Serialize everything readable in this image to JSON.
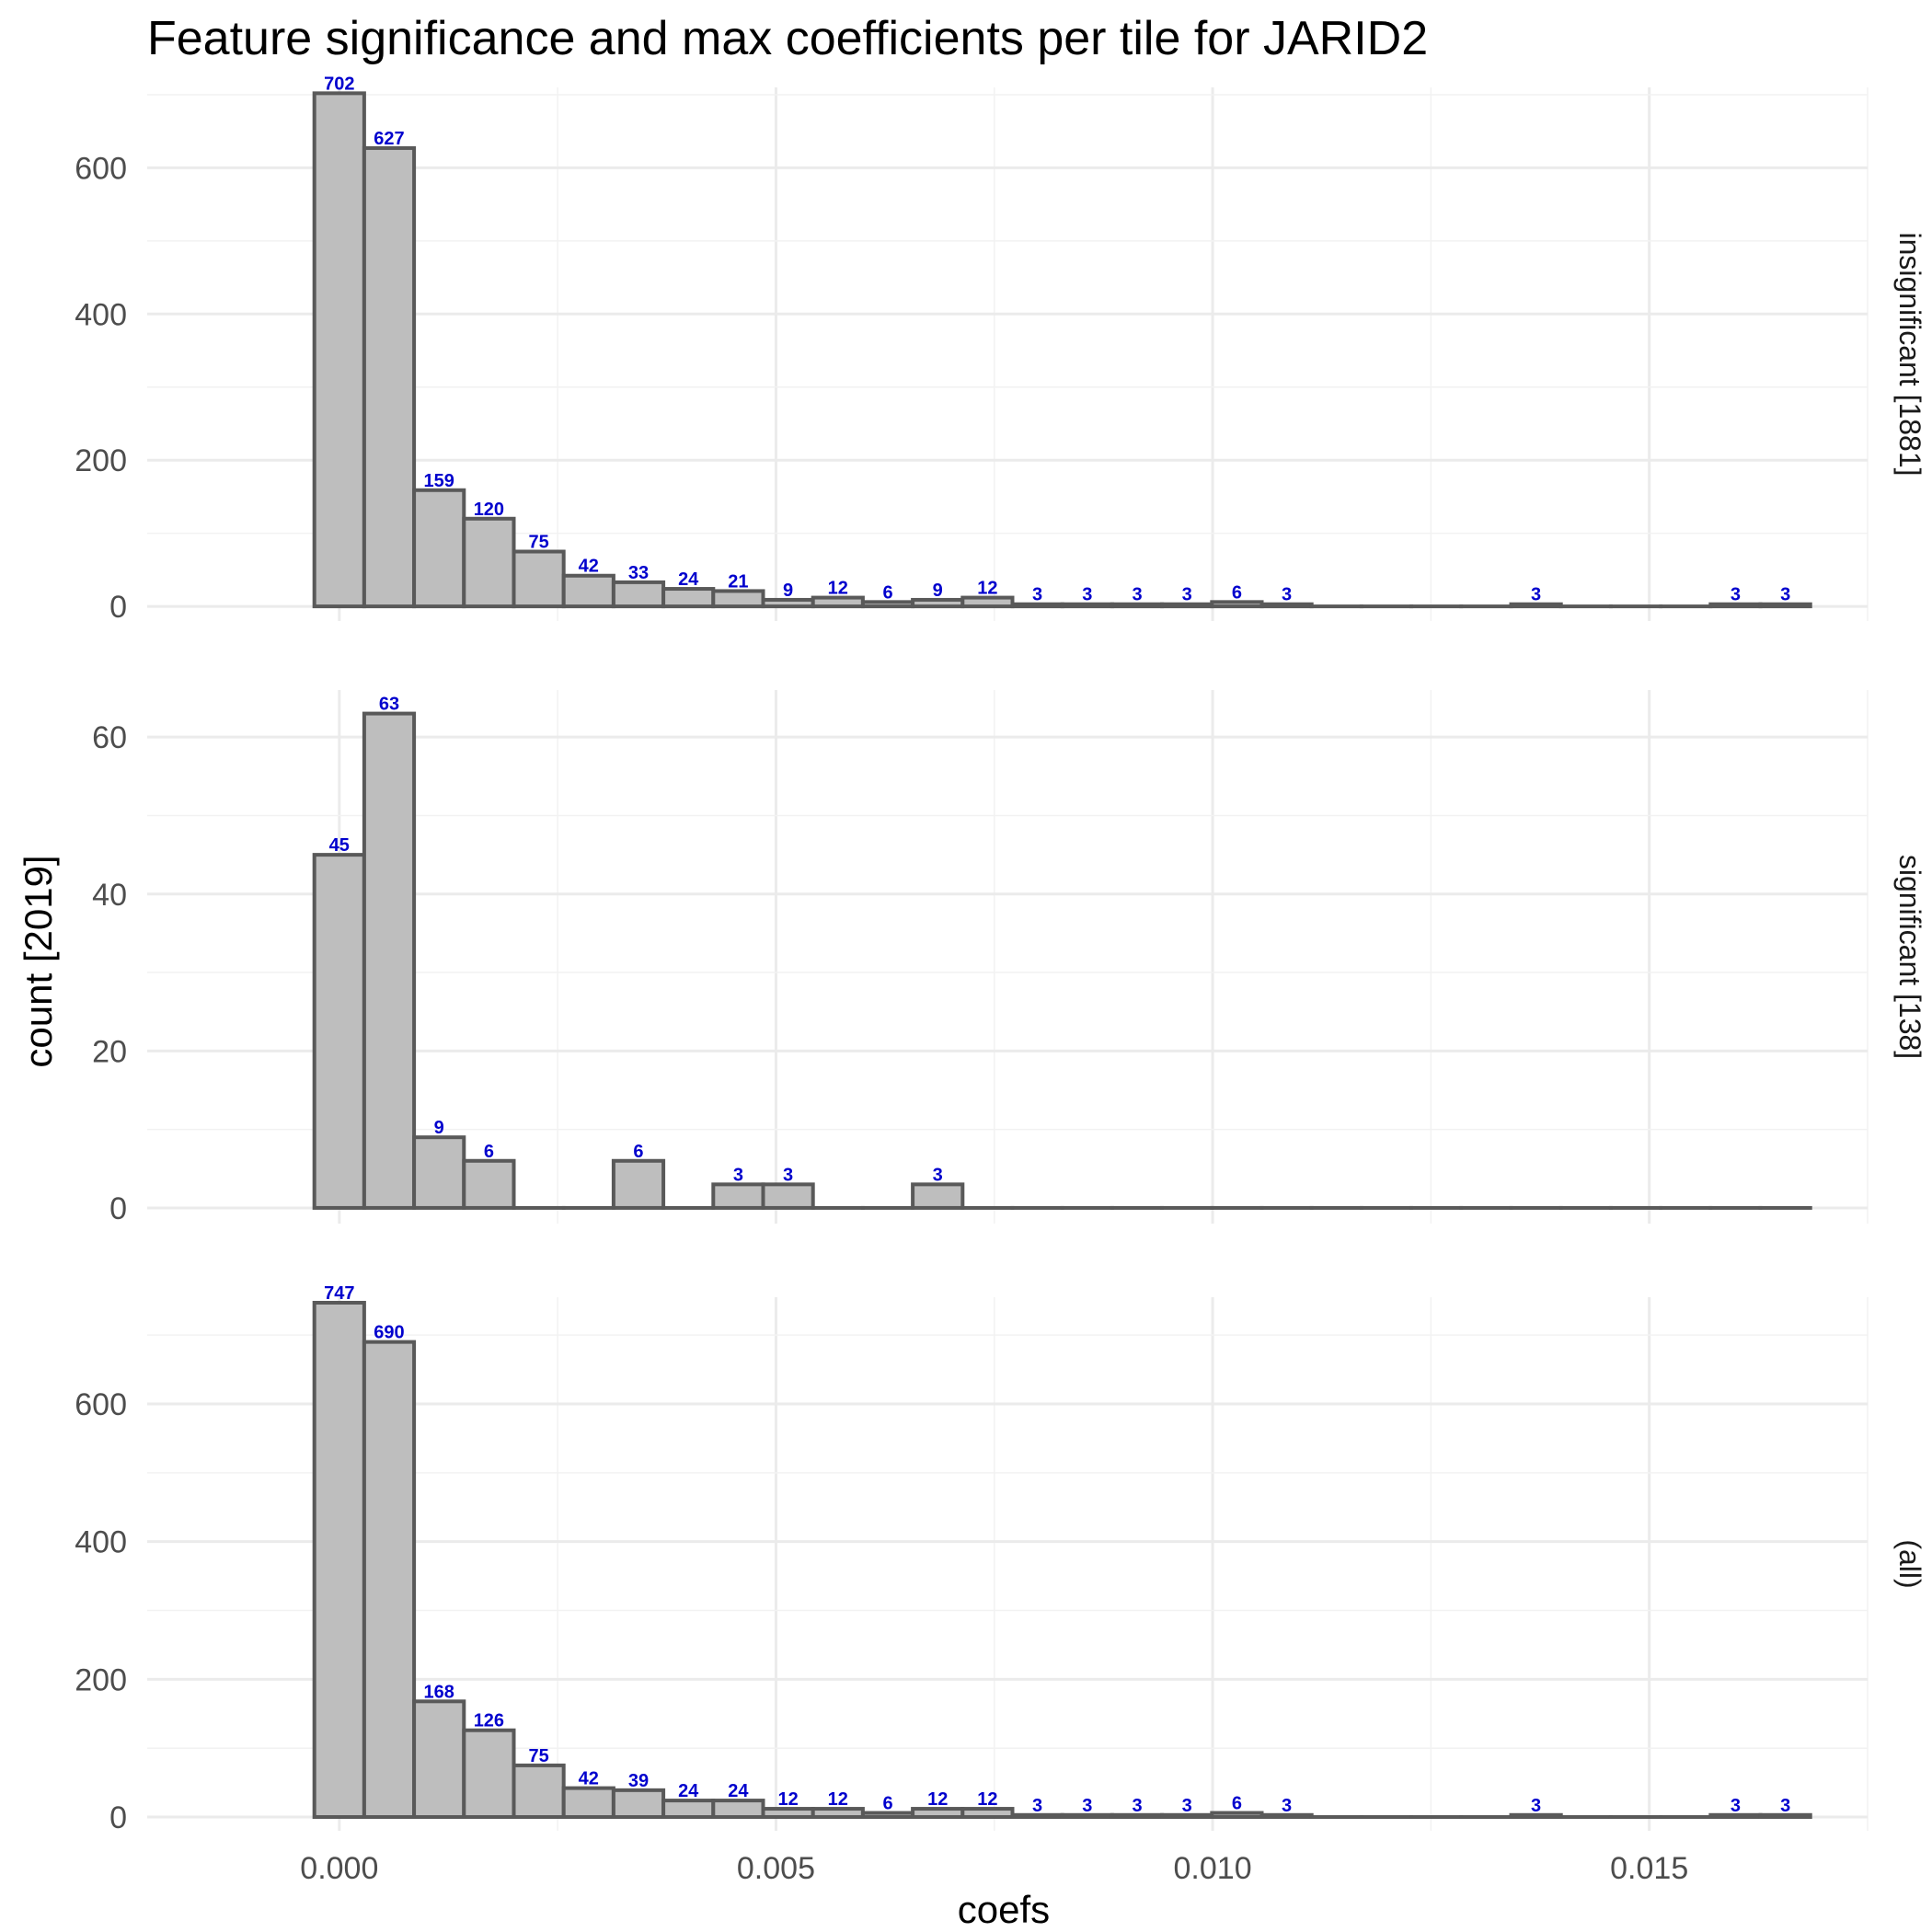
{
  "chart_data": {
    "type": "bar",
    "title": "Feature significance and max coefficients per tile for JARID2",
    "xlabel": "coefs",
    "ylabel": "count [2019]",
    "xlim": [
      -0.0022,
      0.0175
    ],
    "x_ticks": [
      0.0,
      0.005,
      0.01,
      0.015
    ],
    "x_tick_labels": [
      "0.000",
      "0.005",
      "0.010",
      "0.015"
    ],
    "grid": true,
    "bin_width": 0.000571,
    "bin_start": -0.000286,
    "panels": [
      {
        "label": "insignificant [1881]",
        "ylim": [
          -20,
          710
        ],
        "y_ticks": [
          0,
          200,
          400,
          600
        ],
        "y_tick_labels": [
          "0",
          "200",
          "400",
          "600"
        ],
        "values": [
          702,
          627,
          159,
          120,
          75,
          42,
          33,
          24,
          21,
          9,
          12,
          6,
          9,
          12,
          3,
          3,
          3,
          3,
          6,
          3,
          0,
          0,
          0,
          0,
          3,
          0,
          0,
          0,
          3,
          3
        ]
      },
      {
        "label": "significant [138]",
        "ylim": [
          -2,
          66
        ],
        "y_ticks": [
          0,
          20,
          40,
          60
        ],
        "y_tick_labels": [
          "0",
          "20",
          "40",
          "60"
        ],
        "values": [
          45,
          63,
          9,
          6,
          0,
          0,
          6,
          0,
          3,
          3,
          0,
          0,
          3,
          0,
          0,
          0,
          0,
          0,
          0,
          0,
          0,
          0,
          0,
          0,
          0,
          0,
          0,
          0,
          0,
          0
        ]
      },
      {
        "label": "(all)",
        "ylim": [
          -20,
          755
        ],
        "y_ticks": [
          0,
          200,
          400,
          600
        ],
        "y_tick_labels": [
          "0",
          "200",
          "400",
          "600"
        ],
        "values": [
          747,
          690,
          168,
          126,
          75,
          42,
          39,
          24,
          24,
          12,
          12,
          6,
          12,
          12,
          3,
          3,
          3,
          3,
          6,
          3,
          0,
          0,
          0,
          0,
          3,
          0,
          0,
          0,
          3,
          3
        ]
      }
    ],
    "colors": {
      "bar_fill": "#bebebe",
      "bar_stroke": "#595959",
      "label": "#0000cd",
      "grid": "#ebebeb"
    }
  }
}
